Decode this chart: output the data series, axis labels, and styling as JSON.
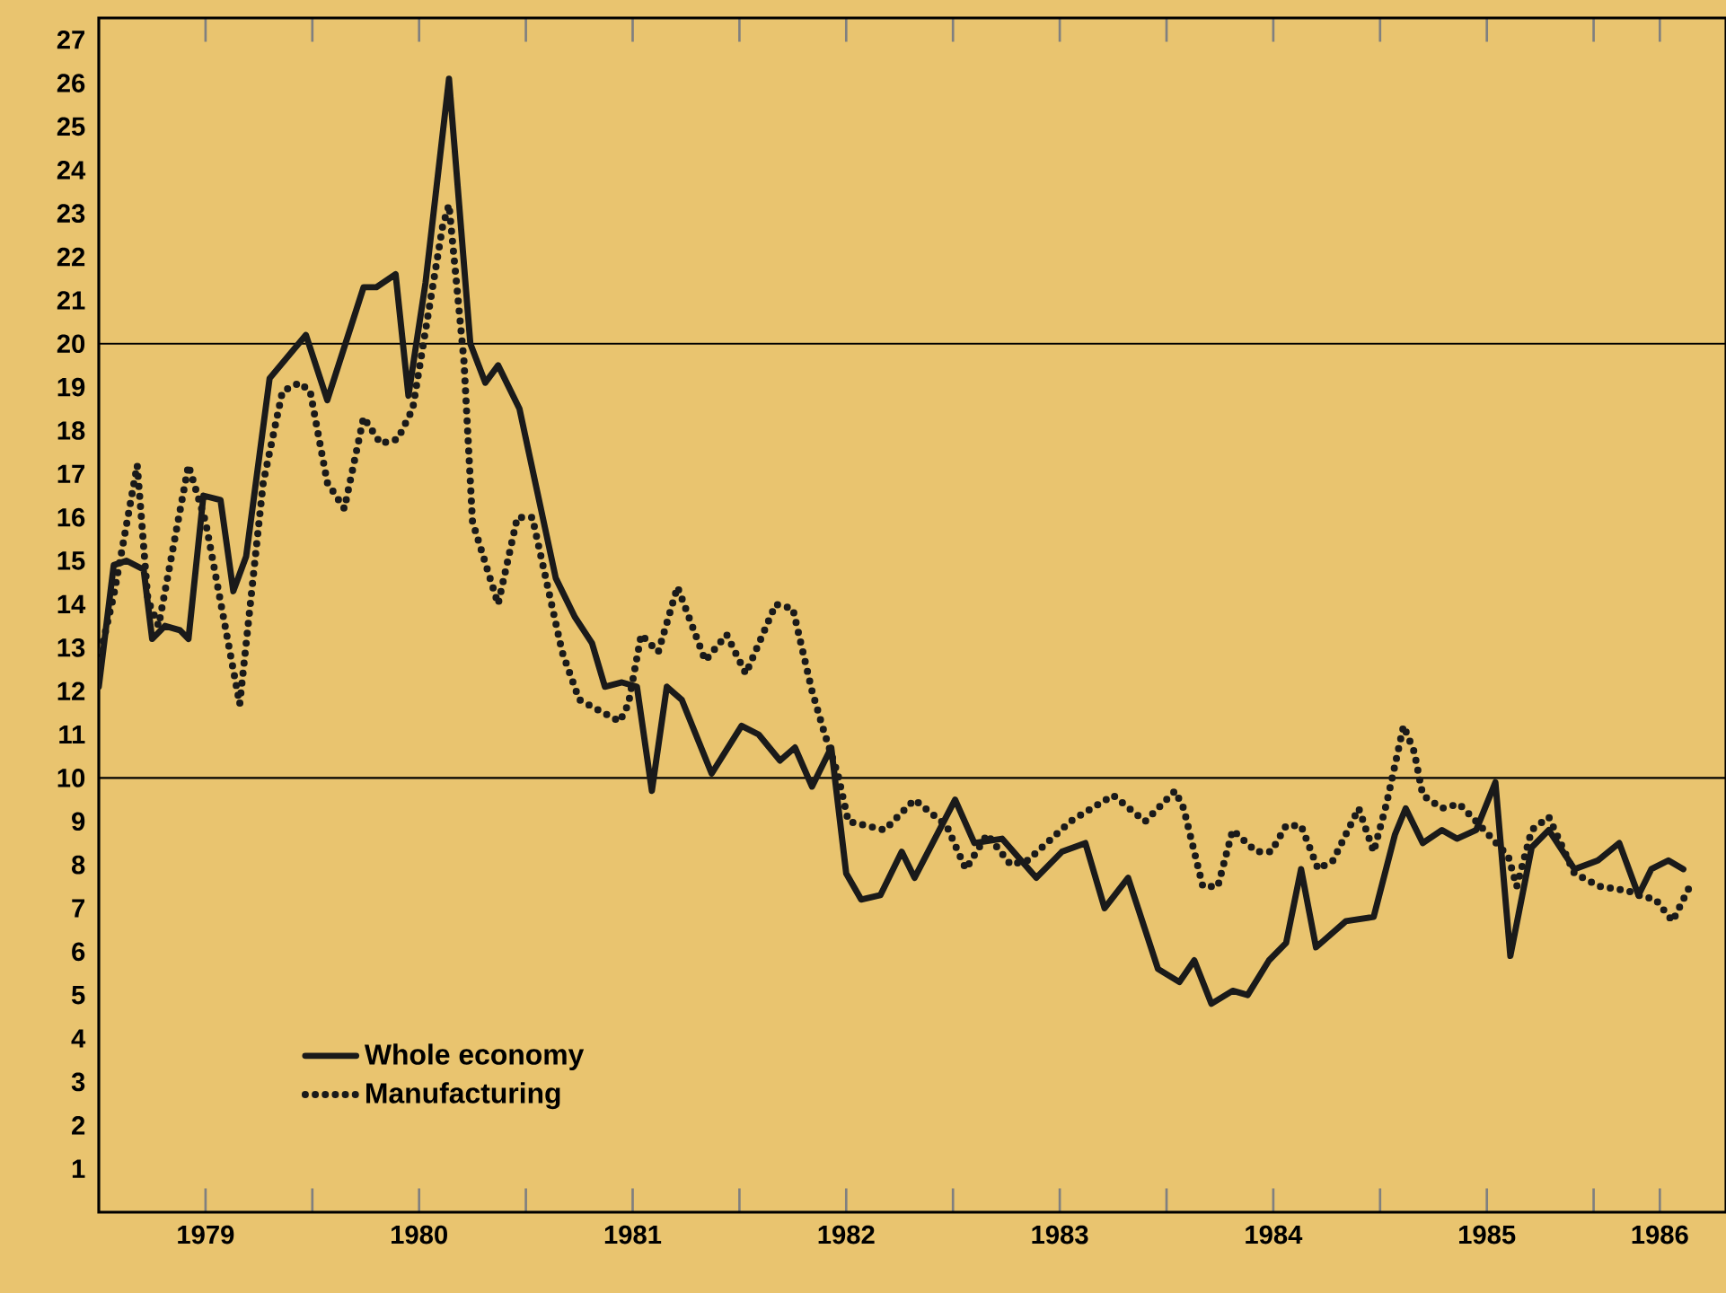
{
  "chart_data": {
    "type": "line",
    "xlim": [
      1979,
      1986.62
    ],
    "ylim": [
      0,
      27.5
    ],
    "yticks": [
      1,
      2,
      3,
      4,
      5,
      6,
      7,
      8,
      9,
      10,
      11,
      12,
      13,
      14,
      15,
      16,
      17,
      18,
      19,
      20,
      21,
      22,
      23,
      24,
      25,
      26,
      27
    ],
    "xticks": [
      {
        "value": 1979.5,
        "label": "1979"
      },
      {
        "value": 1980,
        "label": null
      },
      {
        "value": 1980.5,
        "label": "1980"
      },
      {
        "value": 1981,
        "label": null
      },
      {
        "value": 1981.5,
        "label": "1981"
      },
      {
        "value": 1982,
        "label": null
      },
      {
        "value": 1982.5,
        "label": "1982"
      },
      {
        "value": 1983,
        "label": null
      },
      {
        "value": 1983.5,
        "label": "1983"
      },
      {
        "value": 1984,
        "label": null
      },
      {
        "value": 1984.5,
        "label": "1984"
      },
      {
        "value": 1985,
        "label": null
      },
      {
        "value": 1985.5,
        "label": "1985"
      },
      {
        "value": 1986,
        "label": null
      },
      {
        "value": 1986.31,
        "label": "1986"
      }
    ],
    "ref_lines": [
      {
        "axis": "y",
        "value": 10
      },
      {
        "axis": "y",
        "value": 20
      }
    ],
    "legend": "bottom left",
    "marker": "none",
    "series": [
      {
        "name": "Whole economy",
        "color": "#1a1a1a",
        "line_style": "solid",
        "x": [
          1979.0,
          1979.07,
          1979.13,
          1979.21,
          1979.25,
          1979.31,
          1979.38,
          1979.42,
          1979.49,
          1979.57,
          1979.63,
          1979.69,
          1979.8,
          1979.97,
          1980.07,
          1980.24,
          1980.3,
          1980.39,
          1980.45,
          1980.53,
          1980.64,
          1980.74,
          1980.81,
          1980.87,
          1980.97,
          1981.14,
          1981.23,
          1981.31,
          1981.37,
          1981.45,
          1981.52,
          1981.59,
          1981.66,
          1981.73,
          1981.87,
          1982.01,
          1982.09,
          1982.19,
          1982.26,
          1982.34,
          1982.43,
          1982.5,
          1982.57,
          1982.66,
          1982.76,
          1982.82,
          1983.01,
          1983.1,
          1983.23,
          1983.39,
          1983.51,
          1983.62,
          1983.71,
          1983.82,
          1983.96,
          1984.06,
          1984.13,
          1984.21,
          1984.31,
          1984.38,
          1984.48,
          1984.56,
          1984.63,
          1984.7,
          1984.84,
          1984.97,
          1985.07,
          1985.12,
          1985.2,
          1985.29,
          1985.36,
          1985.45,
          1985.54,
          1985.61,
          1985.71,
          1985.79,
          1985.91,
          1986.02,
          1986.12,
          1986.21,
          1986.27,
          1986.35,
          1986.42
        ],
        "values": [
          12.1,
          14.9,
          15.0,
          14.8,
          13.2,
          13.5,
          13.4,
          13.2,
          16.5,
          16.4,
          14.3,
          15.1,
          19.2,
          20.2,
          18.7,
          21.3,
          21.3,
          21.6,
          18.8,
          21.4,
          26.1,
          20.0,
          19.1,
          19.5,
          18.5,
          14.6,
          13.7,
          13.1,
          12.1,
          12.2,
          12.1,
          9.7,
          12.1,
          11.8,
          10.1,
          11.2,
          11.0,
          10.4,
          10.7,
          9.8,
          10.7,
          7.8,
          7.2,
          7.3,
          8.3,
          7.7,
          9.5,
          8.5,
          8.6,
          7.7,
          8.3,
          8.5,
          7.0,
          7.7,
          5.6,
          5.3,
          5.8,
          4.8,
          5.1,
          5.0,
          5.8,
          6.2,
          7.9,
          6.1,
          6.7,
          6.8,
          8.7,
          9.3,
          8.5,
          8.8,
          8.6,
          8.8,
          9.9,
          5.9,
          8.4,
          8.8,
          7.9,
          8.1,
          8.5,
          7.3,
          7.9,
          8.1,
          7.9
        ]
      },
      {
        "name": "Manufacturing",
        "color": "#1a1a1a",
        "line_style": "dotted",
        "x": [
          1979.0,
          1979.07,
          1979.18,
          1979.23,
          1979.28,
          1979.42,
          1979.5,
          1979.66,
          1979.77,
          1979.86,
          1979.94,
          1979.99,
          1980.07,
          1980.15,
          1980.24,
          1980.32,
          1980.4,
          1980.47,
          1980.61,
          1980.64,
          1980.71,
          1980.75,
          1980.87,
          1980.96,
          1981.03,
          1981.17,
          1981.25,
          1981.44,
          1981.48,
          1981.54,
          1981.62,
          1981.71,
          1981.84,
          1981.94,
          1982.03,
          1982.17,
          1982.25,
          1982.34,
          1982.4,
          1982.46,
          1982.51,
          1982.68,
          1982.82,
          1982.97,
          1983.06,
          1983.16,
          1983.27,
          1983.35,
          1983.55,
          1983.75,
          1983.9,
          1984.04,
          1984.08,
          1984.17,
          1984.24,
          1984.31,
          1984.42,
          1984.49,
          1984.56,
          1984.63,
          1984.71,
          1984.78,
          1984.9,
          1984.97,
          1985.03,
          1985.11,
          1985.16,
          1985.2,
          1985.29,
          1985.37,
          1985.45,
          1985.6,
          1985.64,
          1985.71,
          1985.79,
          1985.91,
          1986.03,
          1986.16,
          1986.21,
          1986.29,
          1986.37,
          1986.45
        ],
        "values": [
          12.7,
          14.2,
          17.2,
          14.1,
          13.5,
          17.2,
          15.9,
          11.7,
          16.8,
          18.9,
          19.1,
          18.9,
          16.8,
          16.2,
          18.3,
          17.7,
          17.8,
          18.5,
          22.7,
          23.2,
          19.6,
          15.9,
          14.0,
          16.0,
          16.0,
          12.9,
          11.8,
          11.3,
          11.7,
          13.3,
          12.9,
          14.4,
          12.7,
          13.3,
          12.4,
          14.0,
          13.9,
          12.0,
          11.0,
          10.1,
          9.0,
          8.8,
          9.5,
          8.9,
          7.9,
          8.7,
          8.0,
          8.1,
          9.0,
          9.6,
          9.0,
          9.7,
          9.3,
          7.5,
          7.5,
          8.8,
          8.3,
          8.3,
          8.9,
          8.9,
          7.9,
          8.1,
          9.3,
          8.3,
          9.4,
          11.2,
          10.6,
          9.6,
          9.3,
          9.4,
          9.0,
          8.2,
          7.5,
          8.8,
          9.1,
          7.8,
          7.5,
          7.4,
          7.3,
          7.2,
          6.7,
          7.5
        ]
      }
    ]
  }
}
